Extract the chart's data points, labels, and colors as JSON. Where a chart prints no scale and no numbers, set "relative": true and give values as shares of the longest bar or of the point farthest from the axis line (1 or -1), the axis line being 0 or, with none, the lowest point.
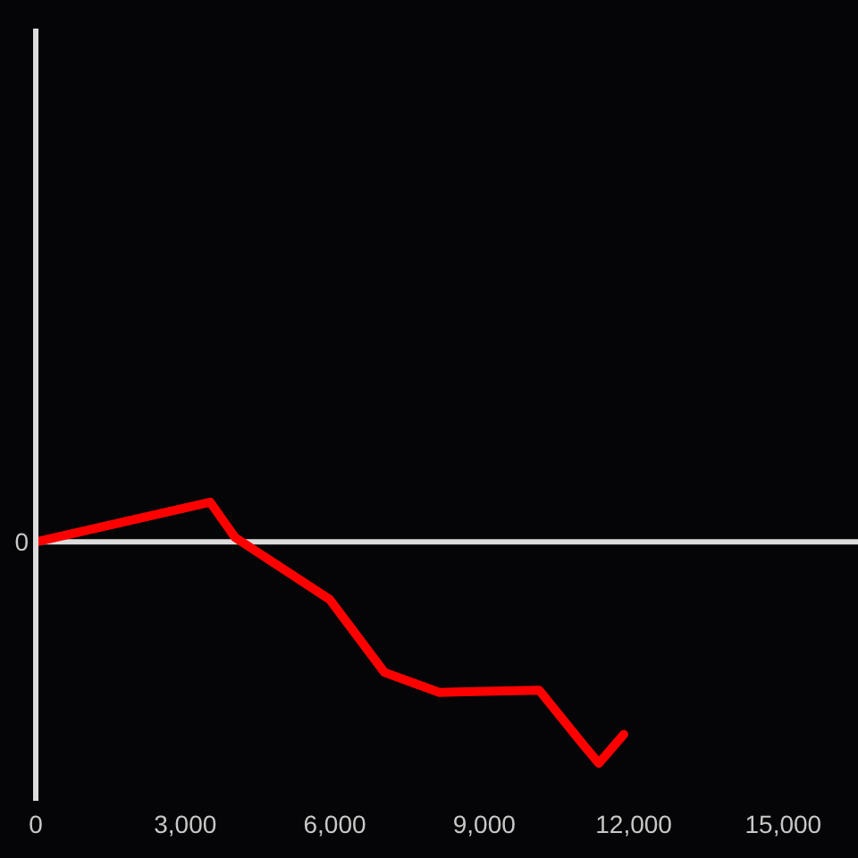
{
  "chart_data": {
    "type": "line",
    "relative": true,
    "x": [
      0,
      3500,
      4000,
      5900,
      7000,
      8100,
      10100,
      11000,
      11300,
      11800
    ],
    "series": [
      {
        "color": "#ff0000",
        "values": [
          0,
          0.18,
          0.02,
          -0.26,
          -0.59,
          -0.68,
          -0.67,
          -0.92,
          -1,
          -0.87
        ]
      }
    ],
    "xlim": [
      0,
      16500
    ],
    "xticks": [
      0,
      {
        "value": 3000,
        "label": "3,000"
      },
      {
        "value": 6000,
        "label": "6,000"
      },
      {
        "value": 9000,
        "label": "9,000"
      },
      {
        "value": 12000,
        "label": "12,000"
      },
      {
        "value": 15000,
        "label": "15,000"
      }
    ],
    "ref_lines": [
      {
        "axis": "y",
        "value": 0,
        "label": "0"
      }
    ],
    "marker": "none",
    "line_style": "solid"
  }
}
